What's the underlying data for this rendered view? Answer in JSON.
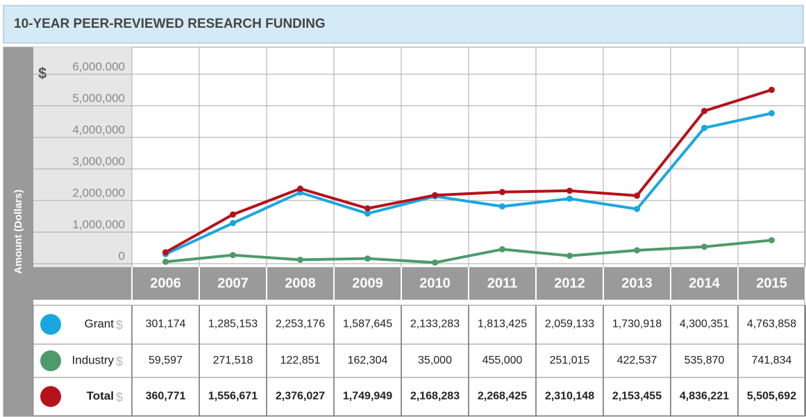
{
  "chart_data": {
    "type": "line",
    "title": "10-YEAR PEER-REVIEWED RESEARCH FUNDING",
    "y_label": "Amount (Dollars)",
    "currency_symbol": "$",
    "categories": [
      "2006",
      "2007",
      "2008",
      "2009",
      "2010",
      "2011",
      "2012",
      "2013",
      "2014",
      "2015"
    ],
    "series": [
      {
        "name": "Grant",
        "color": "#1aa7e0",
        "values": [
          301174,
          1285153,
          2253176,
          1587645,
          2133283,
          1813425,
          2059133,
          1730918,
          4300351,
          4763858
        ],
        "value_labels": [
          "301,174",
          "1,285,153",
          "2,253,176",
          "1,587,645",
          "2,133,283",
          "1,813,425",
          "2,059,133",
          "1,730,918",
          "4,300,351",
          "4,763,858"
        ]
      },
      {
        "name": "Industry",
        "color": "#4e9a6b",
        "values": [
          59597,
          271518,
          122851,
          162304,
          35000,
          455000,
          251015,
          422537,
          535870,
          741834
        ],
        "value_labels": [
          "59,597",
          "271,518",
          "122,851",
          "162,304",
          "35,000",
          "455,000",
          "251,015",
          "422,537",
          "535,870",
          "741,834"
        ]
      },
      {
        "name": "Total",
        "color": "#b5121b",
        "values": [
          360771,
          1556671,
          2376027,
          1749949,
          2168283,
          2268425,
          2310148,
          2153455,
          4836221,
          5505692
        ],
        "value_labels": [
          "360,771",
          "1,556,671",
          "2,376,027",
          "1,749,949",
          "2,168,283",
          "2,268,425",
          "2,310,148",
          "2,153,455",
          "4,836,221",
          "5,505,692"
        ]
      }
    ],
    "ylim": [
      0,
      6000000
    ],
    "yticks": [
      0,
      {
        "value": 1000000,
        "label": "1,000,000"
      },
      {
        "value": 2000000,
        "label": "2,000,000"
      },
      {
        "value": 3000000,
        "label": "3,000,000"
      },
      {
        "value": 4000000,
        "label": "4,000,000"
      },
      {
        "value": 5000000,
        "label": "5,000,000"
      },
      {
        "value": 6000000,
        "label": "6,000.000"
      }
    ],
    "grid": true
  }
}
